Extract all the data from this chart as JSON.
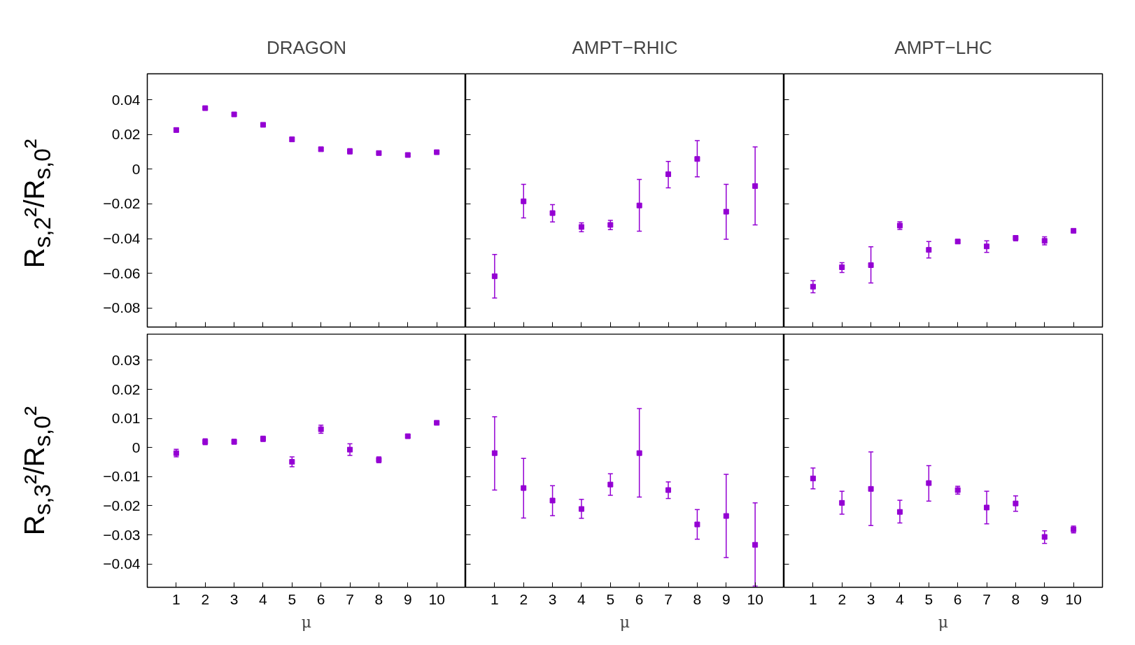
{
  "chart_data": [
    {
      "type": "scatter",
      "title": "DRAGON",
      "ylabel": "R$_{s,2}$²/R$_{s,0}$²",
      "x": [
        1,
        2,
        3,
        4,
        5,
        6,
        7,
        8,
        9,
        10
      ],
      "color": "#9400d3",
      "marker": "square",
      "values": [
        0.0226,
        0.0352,
        0.0316,
        0.0256,
        0.0172,
        0.0115,
        0.0103,
        0.0093,
        0.0082,
        0.0098
      ],
      "errors": [
        0.0012,
        0.0005,
        0.0005,
        0.0005,
        0.0012,
        0.0007,
        0.0015,
        0.0005,
        0.0005,
        0.0005
      ],
      "xlim": [
        0,
        11
      ],
      "xticks": [
        1,
        2,
        3,
        4,
        5,
        6,
        7,
        8,
        9,
        10
      ],
      "ylim": [
        -0.091,
        0.055
      ],
      "yticks": [
        {
          "value": -0.08,
          "label": "−0.08"
        },
        {
          "value": -0.06,
          "label": "−0.06"
        },
        {
          "value": -0.04,
          "label": "−0.04"
        },
        {
          "value": -0.02,
          "label": "−0.02"
        },
        0,
        0.02,
        0.04
      ],
      "tick_labels": "y",
      "grid": false
    },
    {
      "type": "scatter",
      "title": "AMPT−RHIC",
      "x": [
        1,
        2,
        3,
        4,
        5,
        6,
        7,
        8,
        9,
        10
      ],
      "color": "#9400d3",
      "marker": "square",
      "values": [
        -0.0617,
        -0.0185,
        -0.0253,
        -0.0333,
        -0.0321,
        -0.0209,
        -0.0029,
        0.0059,
        -0.0245,
        -0.0097
      ],
      "errors": [
        [
          -0.0743,
          -0.0492
        ],
        [
          -0.0281,
          -0.0087
        ],
        [
          -0.0304,
          -0.0204
        ],
        [
          -0.036,
          -0.0309
        ],
        [
          -0.0348,
          -0.0295
        ],
        [
          -0.0357,
          -0.0059
        ],
        [
          -0.0107,
          0.0045
        ],
        [
          -0.0044,
          0.0165
        ],
        [
          -0.0404,
          -0.0087
        ],
        [
          -0.0321,
          0.0129
        ]
      ],
      "xlim": [
        0,
        11
      ],
      "xticks": [
        1,
        2,
        3,
        4,
        5,
        6,
        7,
        8,
        9,
        10
      ],
      "ylim": [
        -0.091,
        0.055
      ],
      "yticks": [
        -0.08,
        -0.06,
        -0.04,
        -0.02,
        0,
        0.02,
        0.04
      ],
      "tick_labels": false,
      "grid": false
    },
    {
      "type": "scatter",
      "title": "AMPT−LHC",
      "x": [
        1,
        2,
        3,
        4,
        5,
        6,
        7,
        8,
        9,
        10
      ],
      "color": "#9400d3",
      "marker": "square",
      "values": [
        -0.0677,
        -0.0565,
        -0.0553,
        -0.0325,
        -0.0465,
        -0.0417,
        -0.0445,
        -0.0396,
        -0.0413,
        -0.0355
      ],
      "errors": [
        [
          -0.0712,
          -0.0643
        ],
        [
          -0.0595,
          -0.0539
        ],
        [
          -0.0656,
          -0.0447
        ],
        [
          -0.0347,
          -0.0303
        ],
        [
          -0.0512,
          -0.0417
        ],
        0.0008,
        [
          -0.0479,
          -0.0413
        ],
        [
          -0.0413,
          -0.0384
        ],
        [
          -0.0436,
          -0.039
        ],
        0.0005
      ],
      "xlim": [
        0,
        11
      ],
      "xticks": [
        1,
        2,
        3,
        4,
        5,
        6,
        7,
        8,
        9,
        10
      ],
      "ylim": [
        -0.091,
        0.055
      ],
      "yticks": [
        -0.08,
        -0.06,
        -0.04,
        -0.02,
        0,
        0.02,
        0.04
      ],
      "tick_labels": false,
      "grid": false
    },
    {
      "type": "scatter",
      "xlabel": "μ",
      "ylabel": "R$_{s,3}$²/R$_{s,0}$²",
      "x": [
        1,
        2,
        3,
        4,
        5,
        6,
        7,
        8,
        9,
        10
      ],
      "color": "#9400d3",
      "marker": "square",
      "values": [
        -0.0019,
        0.002,
        0.002,
        0.003,
        -0.0049,
        0.0063,
        -0.0007,
        -0.0042,
        0.0039,
        0.0085
      ],
      "errors": [
        0.0013,
        0.001,
        0.0008,
        0.0009,
        0.0017,
        0.0014,
        0.002,
        0.001,
        0.0004,
        0.0004
      ],
      "xlim": [
        0,
        11
      ],
      "xticks": [
        1,
        2,
        3,
        4,
        5,
        6,
        7,
        8,
        9,
        10
      ],
      "ylim": [
        -0.048,
        0.039
      ],
      "yticks": [
        {
          "value": -0.04,
          "label": "−0.04"
        },
        {
          "value": -0.03,
          "label": "−0.03"
        },
        {
          "value": -0.02,
          "label": "−0.02"
        },
        {
          "value": -0.01,
          "label": "−0.01"
        },
        0,
        0.01,
        0.02,
        0.03
      ],
      "grid": false
    },
    {
      "type": "scatter",
      "xlabel": "μ",
      "x": [
        1,
        2,
        3,
        4,
        5,
        6,
        7,
        8,
        9,
        10
      ],
      "color": "#9400d3",
      "marker": "square",
      "values": [
        -0.0019,
        -0.0139,
        -0.0182,
        -0.0211,
        -0.0127,
        -0.0019,
        -0.0146,
        -0.0264,
        -0.0235,
        -0.0334
      ],
      "errors": [
        [
          -0.0146,
          0.0106
        ],
        [
          -0.0242,
          -0.0037
        ],
        [
          -0.0234,
          -0.0131
        ],
        [
          -0.0243,
          -0.0178
        ],
        [
          -0.0164,
          -0.009
        ],
        [
          -0.017,
          0.0134
        ],
        [
          -0.0175,
          -0.0118
        ],
        [
          -0.0315,
          -0.0213
        ],
        [
          -0.0378,
          -0.0092
        ],
        [
          -0.0476,
          -0.019
        ]
      ],
      "xlim": [
        0,
        11
      ],
      "xticks": [
        1,
        2,
        3,
        4,
        5,
        6,
        7,
        8,
        9,
        10
      ],
      "ylim": [
        -0.048,
        0.039
      ],
      "yticks": [
        -0.04,
        -0.03,
        -0.02,
        -0.01,
        0,
        0.01,
        0.02,
        0.03
      ],
      "tick_labels": "x",
      "grid": false
    },
    {
      "type": "scatter",
      "xlabel": "μ",
      "x": [
        1,
        2,
        3,
        4,
        5,
        6,
        7,
        8,
        9,
        10
      ],
      "color": "#9400d3",
      "marker": "square",
      "values": [
        -0.0106,
        -0.019,
        -0.0142,
        -0.0221,
        -0.0122,
        -0.0146,
        -0.0206,
        -0.0192,
        -0.0307,
        -0.0281
      ],
      "errors": [
        [
          -0.0142,
          -0.007
        ],
        [
          -0.0229,
          -0.015
        ],
        [
          -0.0268,
          -0.0015
        ],
        [
          -0.0259,
          -0.0181
        ],
        [
          -0.0184,
          -0.0062
        ],
        [
          -0.016,
          -0.0133
        ],
        [
          -0.0262,
          -0.015
        ],
        [
          -0.0219,
          -0.0166
        ],
        [
          -0.0329,
          -0.0286
        ],
        [
          -0.0293,
          -0.027
        ]
      ],
      "xlim": [
        0,
        11
      ],
      "xticks": [
        1,
        2,
        3,
        4,
        5,
        6,
        7,
        8,
        9,
        10
      ],
      "ylim": [
        -0.048,
        0.039
      ],
      "yticks": [
        -0.04,
        -0.03,
        -0.02,
        -0.01,
        0,
        0.01,
        0.02,
        0.03
      ],
      "tick_labels": "x",
      "grid": false
    }
  ]
}
